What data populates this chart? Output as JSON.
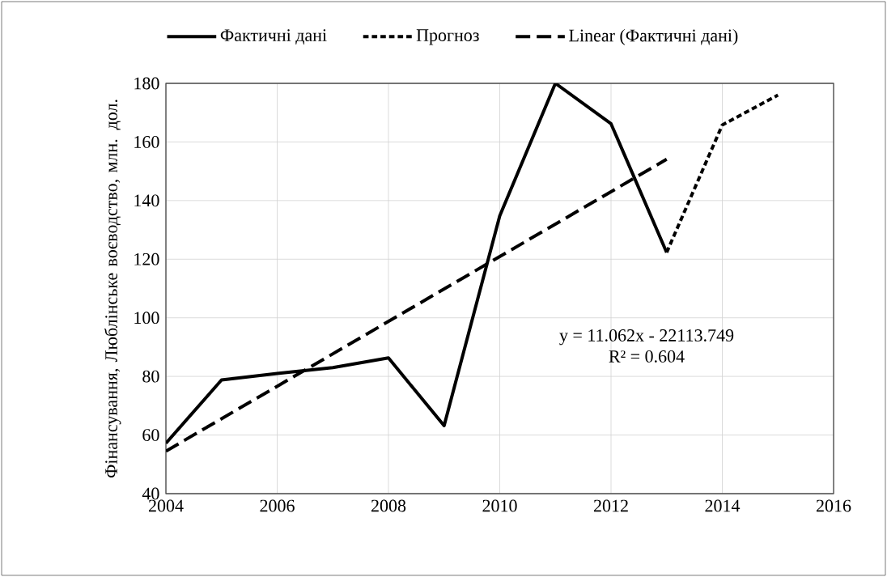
{
  "chart_data": {
    "type": "line",
    "ylabel": "Фінансування, Люблінське воєводство, млн. дол.",
    "series": [
      {
        "name": "Фактичні дані",
        "color": "#000000",
        "line_style": "solid",
        "x": [
          2004,
          2005,
          2006,
          2007,
          2008,
          2009,
          2010,
          2011,
          2012,
          2013
        ],
        "values": [
          57.2,
          78.8,
          81,
          83,
          86.3,
          63.2,
          134.8,
          180,
          166.2,
          122.3
        ]
      },
      {
        "name": "Прогноз",
        "color": "#000000",
        "line_style": "dotted",
        "x": [
          2013,
          2014,
          2015
        ],
        "values": [
          122.3,
          165.8,
          176
        ]
      },
      {
        "name": "Linear (Фактичні дані)",
        "color": "#000000",
        "line_style": "dashed",
        "x": [
          2004,
          2013
        ],
        "values": [
          54.5,
          154.1
        ]
      }
    ],
    "xlim": [
      2004,
      2016
    ],
    "xticks": [
      2004,
      2006,
      2008,
      2010,
      2012,
      2014,
      2016
    ],
    "ylim": [
      40,
      180
    ],
    "yticks": [
      40,
      60,
      80,
      100,
      120,
      140,
      160,
      180
    ],
    "grid": true,
    "legend": "top",
    "marker": "none",
    "annotations": [
      "y = 11.062x - 22113.749",
      "R² = 0.604"
    ]
  }
}
